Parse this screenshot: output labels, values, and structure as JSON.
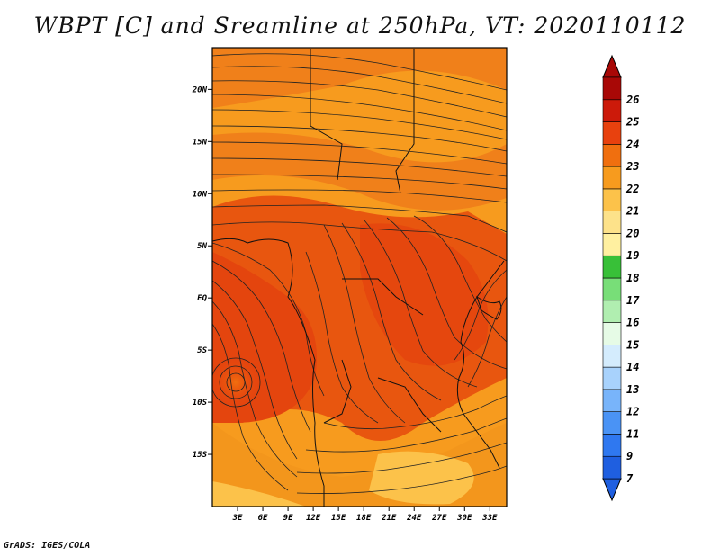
{
  "title": "WBPT [C] and Sreamline at 250hPa, VT: 2020110112",
  "credit": "GrADS: IGES/COLA",
  "map": {
    "lon_range": [
      0,
      35
    ],
    "lat_range": [
      -20,
      24
    ],
    "x_ticks": [
      "3E",
      "6E",
      "9E",
      "12E",
      "15E",
      "18E",
      "21E",
      "24E",
      "27E",
      "30E",
      "33E"
    ],
    "x_tick_values": [
      3,
      6,
      9,
      12,
      15,
      18,
      21,
      24,
      27,
      30,
      33
    ],
    "y_ticks": [
      "20N",
      "15N",
      "10N",
      "5N",
      "EQ",
      "5S",
      "10S",
      "15S"
    ],
    "y_tick_values": [
      20,
      15,
      10,
      5,
      0,
      -5,
      -10,
      -15
    ],
    "field": "wet-bulb potential temperature (shaded) with 250hPa streamlines"
  },
  "colorbar": {
    "levels": [
      "7",
      "9",
      "11",
      "12",
      "13",
      "14",
      "15",
      "16",
      "17",
      "18",
      "19",
      "20",
      "21",
      "22",
      "23",
      "24",
      "25",
      "26"
    ],
    "colors": [
      "#1f5fe0",
      "#2f78f0",
      "#4a93f5",
      "#78b4fa",
      "#a8d2fc",
      "#d4ecfd",
      "#e6fbe6",
      "#b0eeb0",
      "#78de78",
      "#38c038",
      "#fff0a0",
      "#fde28a",
      "#fcc24a",
      "#f79b1e",
      "#f06f0f",
      "#e8410e",
      "#cc1a0a",
      "#a80806"
    ]
  }
}
